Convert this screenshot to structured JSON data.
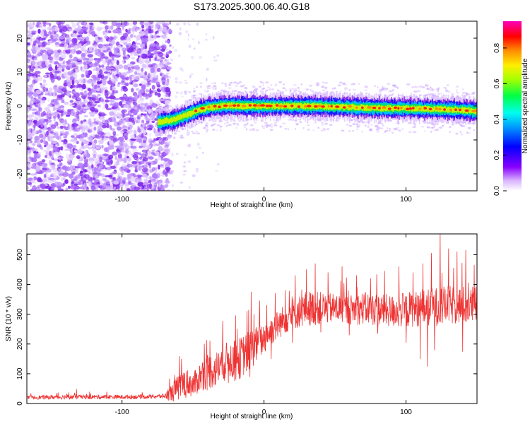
{
  "figure_title": "S173.2025.300.06.40.G18",
  "chart_data": [
    {
      "type": "heatmap",
      "title": "S173.2025.300.06.40.G18",
      "xlabel": "Height of straight line (km)",
      "ylabel": "Frequency (Hz)",
      "xlim": [
        -167,
        150
      ],
      "ylim": [
        -25,
        25
      ],
      "xticks": [
        -100,
        0,
        100
      ],
      "xtick_labels": [
        "-100",
        "0",
        "100"
      ],
      "yticks": [
        -20,
        -10,
        0,
        10,
        20
      ],
      "ytick_labels": [
        "-20",
        "-10",
        "0",
        "10",
        "20"
      ],
      "colorbar": {
        "label": "Normalized spectral amplitude",
        "range": [
          0.0,
          0.95
        ],
        "ticks": [
          0.0,
          0.2,
          0.4,
          0.6,
          0.8
        ],
        "tick_labels": [
          "0.0",
          "0.2",
          "0.4",
          "0.6",
          "0.8"
        ],
        "colormap": [
          "#ffffff",
          "#cc99ff",
          "#8800ff",
          "#0000ff",
          "#00ccff",
          "#00ff44",
          "#ffee00",
          "#ff6600",
          "#ff0000",
          "#ff00cc"
        ]
      },
      "noise_region_x": [
        -167,
        -70
      ],
      "signal_trace": {
        "x": [
          -75,
          -70,
          -65,
          -60,
          -55,
          -50,
          -45,
          -40,
          -35,
          -30,
          -25,
          -20,
          -10,
          0,
          10,
          20,
          30,
          40,
          50,
          60,
          70,
          80,
          90,
          100,
          110,
          120,
          130,
          140,
          150
        ],
        "frequency": [
          -4.8,
          -4.5,
          -4.2,
          -3.5,
          -2.6,
          -1.8,
          -1.0,
          -0.5,
          -0.2,
          0.0,
          0.1,
          0.1,
          0.0,
          0.0,
          0.0,
          0.0,
          0.0,
          -0.1,
          -0.2,
          -0.3,
          -0.5,
          -0.6,
          -0.7,
          -0.7,
          -0.8,
          -0.9,
          -1.0,
          -1.2,
          -1.5
        ]
      }
    },
    {
      "type": "line",
      "xlabel": "Height of straight line (km)",
      "ylabel": "SNR (10 * v/v)",
      "xlim": [
        -167,
        150
      ],
      "ylim": [
        0,
        570
      ],
      "xticks": [
        -100,
        0,
        100
      ],
      "xtick_labels": [
        "-100",
        "0",
        "100"
      ],
      "yticks": [
        0,
        100,
        200,
        300,
        400,
        500
      ],
      "ytick_labels": [
        "0",
        "100",
        "200",
        "300",
        "400",
        "500"
      ],
      "series": [
        {
          "name": "SNR",
          "color": "#ee3333",
          "envelope": {
            "x": [
              -167,
              -140,
              -120,
              -100,
              -80,
              -70,
              -65,
              -60,
              -55,
              -50,
              -45,
              -40,
              -35,
              -30,
              -25,
              -20,
              -15,
              -10,
              -5,
              0,
              5,
              10,
              15,
              20,
              25,
              30,
              40,
              50,
              60,
              70,
              80,
              90,
              100,
              110,
              120,
              130,
              140,
              150
            ],
            "mean": [
              20,
              22,
              22,
              22,
              23,
              25,
              35,
              55,
              75,
              60,
              90,
              110,
              110,
              130,
              150,
              140,
              160,
              180,
              200,
              220,
              245,
              265,
              285,
              300,
              310,
              320,
              320,
              320,
              315,
              320,
              315,
              310,
              315,
              320,
              325,
              330,
              330,
              330
            ],
            "spread": [
              6,
              8,
              7,
              7,
              7,
              8,
              30,
              45,
              45,
              40,
              50,
              60,
              60,
              65,
              60,
              70,
              70,
              70,
              60,
              55,
              50,
              50,
              50,
              55,
              55,
              60,
              55,
              50,
              50,
              55,
              55,
              55,
              60,
              60,
              65,
              65,
              65,
              65
            ]
          },
          "peaks": {
            "x": [
              -132,
              -63,
              -55,
              -42,
              -38,
              -20,
              -12,
              -9,
              -7,
              -3,
              2,
              8,
              15,
              22,
              30,
              36,
              45,
              55,
              65,
              75,
              85,
              95,
              105,
              112,
              118,
              124,
              130,
              136,
              142,
              148
            ],
            "y": [
              48,
              95,
              160,
              200,
              210,
              295,
              310,
              375,
              300,
              345,
              330,
              370,
              380,
              430,
              450,
              470,
              440,
              460,
              430,
              420,
              445,
              460,
              440,
              470,
              505,
              570,
              520,
              510,
              515,
              465
            ]
          },
          "troughs": {
            "x": [
              -55,
              -40,
              -25,
              -10,
              5,
              20,
              40,
              60,
              80,
              100,
              110,
              115,
              120,
              140
            ],
            "y": [
              20,
              45,
              70,
              90,
              150,
              205,
              240,
              230,
              235,
              205,
              150,
              125,
              180,
              175
            ]
          }
        }
      ]
    }
  ]
}
